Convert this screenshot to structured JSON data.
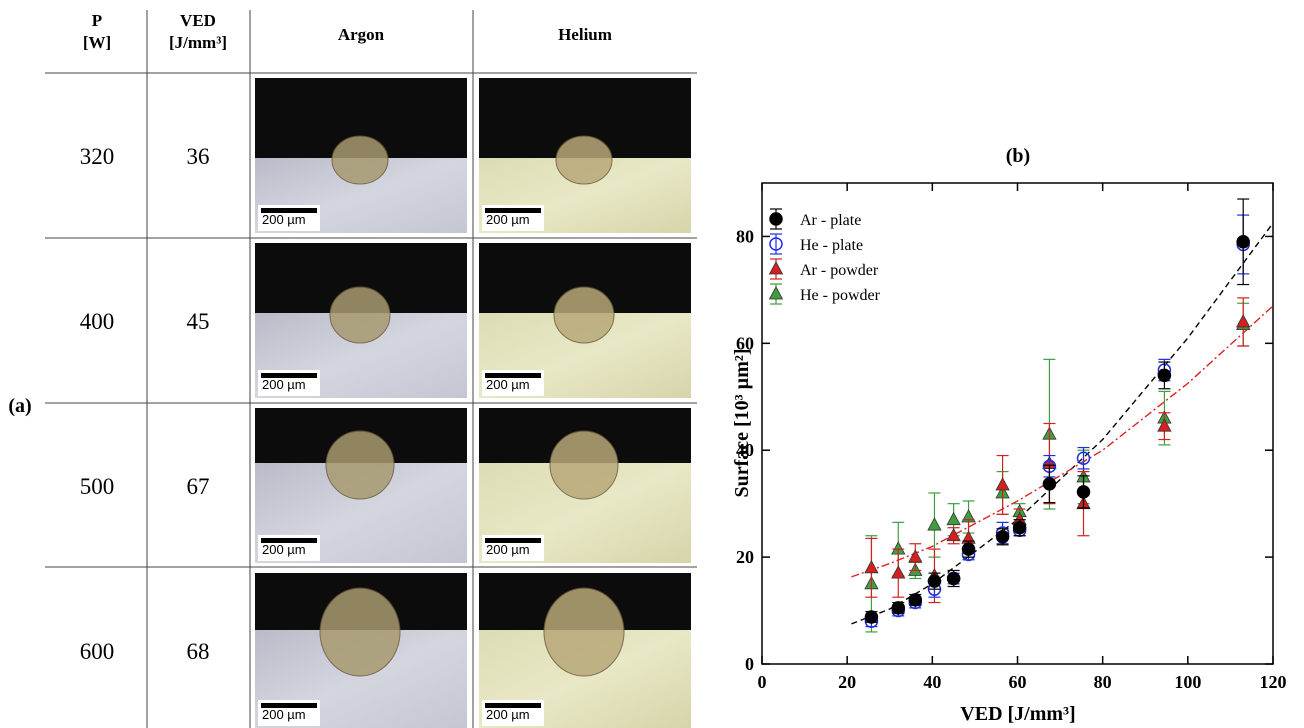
{
  "panel_a": {
    "label": "(a)",
    "columns": [
      [
        "P",
        "[W]"
      ],
      [
        "VED",
        "[J/mm³]"
      ],
      [
        "Argon"
      ],
      [
        "Helium"
      ]
    ],
    "rows": [
      [
        320,
        36
      ],
      [
        400,
        45
      ],
      [
        500,
        67
      ],
      [
        600,
        68
      ]
    ],
    "scale_bar_label": "200 µm"
  },
  "chart_data": {
    "type": "scatter",
    "title": "(b)",
    "x_label": "VED [J/mm³]",
    "y_label": "Surface [10³ µm²]",
    "x": [
      25.7,
      32,
      36,
      40.5,
      45,
      48.5,
      56.5,
      60.5,
      67.5,
      75.5,
      94.5,
      113
    ],
    "series": [
      {
        "name": "Ar - plate",
        "color": "#000000",
        "marker": "circle",
        "filled": true,
        "values": [
          8.8,
          10.5,
          12,
          15.5,
          16,
          21.5,
          23.8,
          25.5,
          33.7,
          32.2,
          54,
          79
        ],
        "errors": [
          1,
          1,
          1,
          1.5,
          1.5,
          1.5,
          1.5,
          1.5,
          3.5,
          3,
          2.5,
          8
        ]
      },
      {
        "name": "He - plate",
        "color": "#1f2fe0",
        "marker": "circle",
        "filled": false,
        "values": [
          8,
          10,
          11.5,
          14,
          16,
          20.5,
          24.5,
          25,
          37,
          38.5,
          55,
          78.5
        ],
        "errors": [
          1,
          1,
          1,
          1.5,
          1,
          1,
          2,
          1,
          2,
          2,
          2,
          5.5
        ]
      },
      {
        "name": "Ar - powder",
        "color": "#d42020",
        "marker": "triangle",
        "filled": true,
        "values": [
          18,
          17,
          20,
          16.5,
          24,
          23.5,
          33.5,
          27,
          37.5,
          30,
          44.5,
          64
        ],
        "errors": [
          5.5,
          4.5,
          2.5,
          5,
          1.5,
          3.5,
          5.5,
          2,
          7.5,
          6,
          2.5,
          4.5
        ]
      },
      {
        "name": "He - powder",
        "color": "#3f9e3f",
        "marker": "triangle",
        "filled": true,
        "values": [
          15,
          21.5,
          17.5,
          26,
          27,
          27.5,
          32,
          28.5,
          43,
          35,
          46,
          63.5
        ],
        "errors": [
          9,
          5,
          1.5,
          6,
          3,
          3,
          4,
          1.5,
          14,
          5,
          5,
          4
        ]
      }
    ],
    "fit_lines": [
      {
        "color": "#000000",
        "dash": "6,4",
        "x": [
          21,
          30,
          40,
          60,
          80,
          100,
          120
        ],
        "values": [
          7.5,
          10.3,
          15,
          27,
          42,
          61,
          82.5
        ]
      },
      {
        "color": "#e02020",
        "dash": "8,3,2,3",
        "x": [
          21,
          30,
          40,
          60,
          80,
          100,
          120
        ],
        "values": [
          16.3,
          18.8,
          22,
          30.5,
          40,
          52.5,
          67
        ]
      }
    ],
    "xlim": [
      0,
      120
    ],
    "ylim": [
      0,
      90
    ],
    "xticks": [
      0,
      20,
      40,
      60,
      80,
      100,
      120
    ],
    "yticks": [
      0,
      20,
      40,
      60,
      80
    ],
    "legend": "upper left"
  }
}
